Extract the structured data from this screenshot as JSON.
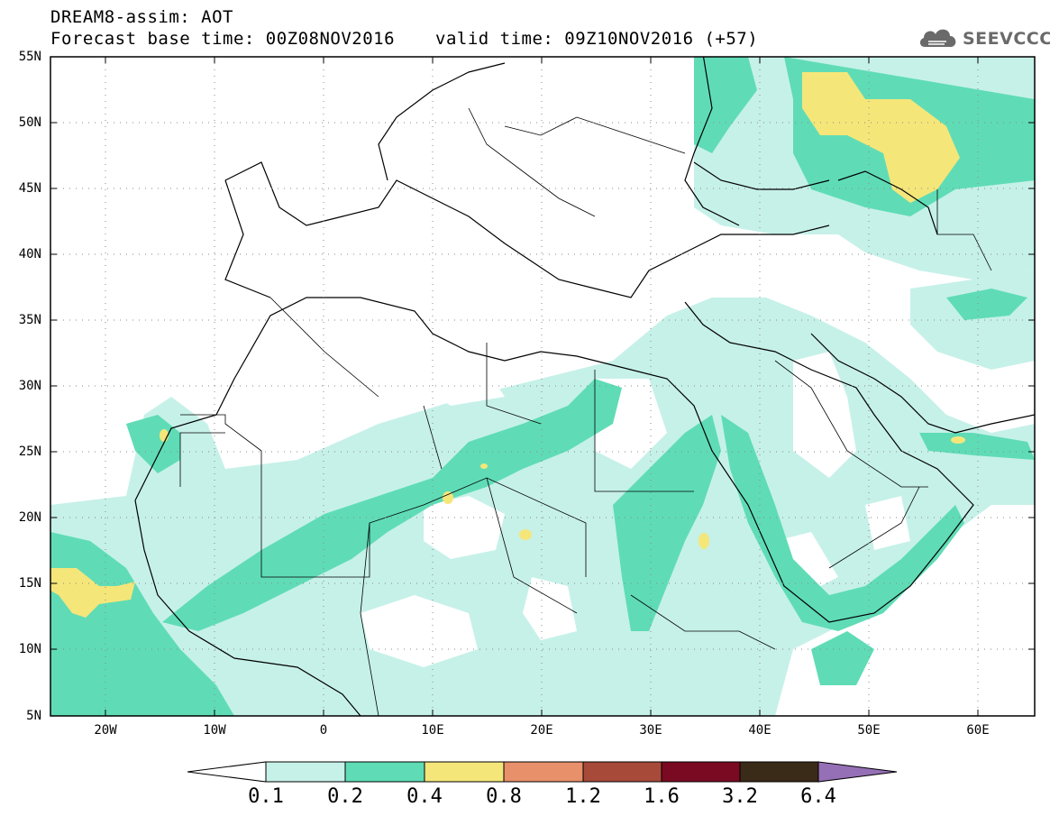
{
  "header": {
    "title": "DREAM8-assim: AOT",
    "base_time": "Forecast base time: 00Z08NOV2016",
    "valid_time": "valid time: 09Z10NOV2016 (+57)"
  },
  "logo": {
    "text": "SEEVCCC",
    "icon": "cloud-icon",
    "color": "#6a6a6a"
  },
  "map": {
    "variable": "AOT",
    "lat_labels": [
      "55N",
      "50N",
      "45N",
      "40N",
      "35N",
      "30N",
      "25N",
      "20N",
      "15N",
      "10N",
      "5N"
    ],
    "lon_labels": [
      "20W",
      "10W",
      "0",
      "10E",
      "20E",
      "30E",
      "40E",
      "50E",
      "60E"
    ],
    "colors": {
      "ocean": "#ffffff",
      "land_background": "#ffffff",
      "coastline": "#000000",
      "gridline": "#888888"
    }
  },
  "colorbar": {
    "labels": [
      "0.1",
      "0.2",
      "0.4",
      "0.8",
      "1.2",
      "1.6",
      "3.2",
      "6.4"
    ],
    "colors": [
      "#ffffff",
      "#c6f1e8",
      "#5fdcb6",
      "#f5e67a",
      "#e8906a",
      "#a84a3a",
      "#7a0a22",
      "#3a2a18",
      "#9670b6"
    ]
  }
}
